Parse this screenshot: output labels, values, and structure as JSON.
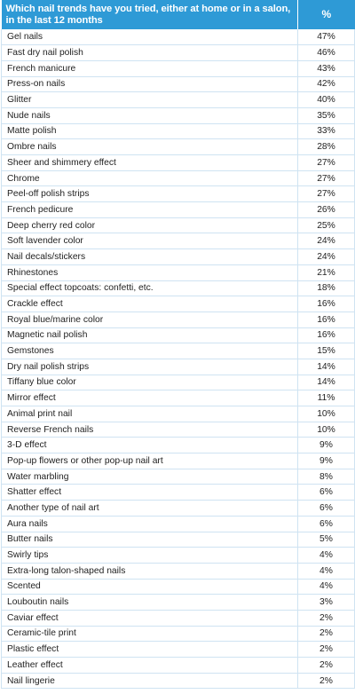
{
  "table": {
    "header": {
      "question": "Which nail trends have you tried, either at home or in a salon, in the last 12 months",
      "percent": "%"
    },
    "rows": [
      {
        "label": "Gel nails",
        "value": "47%"
      },
      {
        "label": "Fast dry nail polish",
        "value": "46%"
      },
      {
        "label": "French manicure",
        "value": "43%"
      },
      {
        "label": "Press-on nails",
        "value": "42%"
      },
      {
        "label": "Glitter",
        "value": "40%"
      },
      {
        "label": "Nude nails",
        "value": "35%"
      },
      {
        "label": "Matte polish",
        "value": "33%"
      },
      {
        "label": "Ombre nails",
        "value": "28%"
      },
      {
        "label": "Sheer and shimmery effect",
        "value": "27%"
      },
      {
        "label": "Chrome",
        "value": "27%"
      },
      {
        "label": "Peel-off polish strips",
        "value": "27%"
      },
      {
        "label": "French pedicure",
        "value": "26%"
      },
      {
        "label": "Deep cherry red color",
        "value": "25%"
      },
      {
        "label": "Soft lavender color",
        "value": "24%"
      },
      {
        "label": "Nail decals/stickers",
        "value": "24%"
      },
      {
        "label": "Rhinestones",
        "value": "21%"
      },
      {
        "label": "Special effect topcoats: confetti, etc.",
        "value": "18%"
      },
      {
        "label": "Crackle effect",
        "value": "16%"
      },
      {
        "label": "Royal blue/marine color",
        "value": "16%"
      },
      {
        "label": "Magnetic nail polish",
        "value": "16%"
      },
      {
        "label": "Gemstones",
        "value": "15%"
      },
      {
        "label": "Dry nail polish strips",
        "value": "14%"
      },
      {
        "label": "Tiffany blue color",
        "value": "14%"
      },
      {
        "label": "Mirror effect",
        "value": "11%"
      },
      {
        "label": "Animal print nail",
        "value": "10%"
      },
      {
        "label": "Reverse French nails",
        "value": "10%"
      },
      {
        "label": "3-D effect",
        "value": "9%"
      },
      {
        "label": "Pop-up flowers or other pop-up nail art",
        "value": "9%"
      },
      {
        "label": "Water marbling",
        "value": "8%"
      },
      {
        "label": "Shatter effect",
        "value": "6%"
      },
      {
        "label": "Another type of nail art",
        "value": "6%"
      },
      {
        "label": "Aura nails",
        "value": "6%"
      },
      {
        "label": "Butter nails",
        "value": "5%"
      },
      {
        "label": "Swirly tips",
        "value": "4%"
      },
      {
        "label": "Extra-long talon-shaped nails",
        "value": "4%"
      },
      {
        "label": "Scented",
        "value": "4%"
      },
      {
        "label": "Louboutin nails",
        "value": "3%"
      },
      {
        "label": "Caviar effect",
        "value": "2%"
      },
      {
        "label": "Ceramic-tile print",
        "value": "2%"
      },
      {
        "label": "Plastic effect",
        "value": "2%"
      },
      {
        "label": "Leather effect",
        "value": "2%"
      },
      {
        "label": "Nail lingerie",
        "value": "2%"
      }
    ]
  },
  "colors": {
    "header_bg": "#2e9ad6",
    "header_text": "#ffffff",
    "grid": "#cfe3f2",
    "body_text": "#222222"
  }
}
